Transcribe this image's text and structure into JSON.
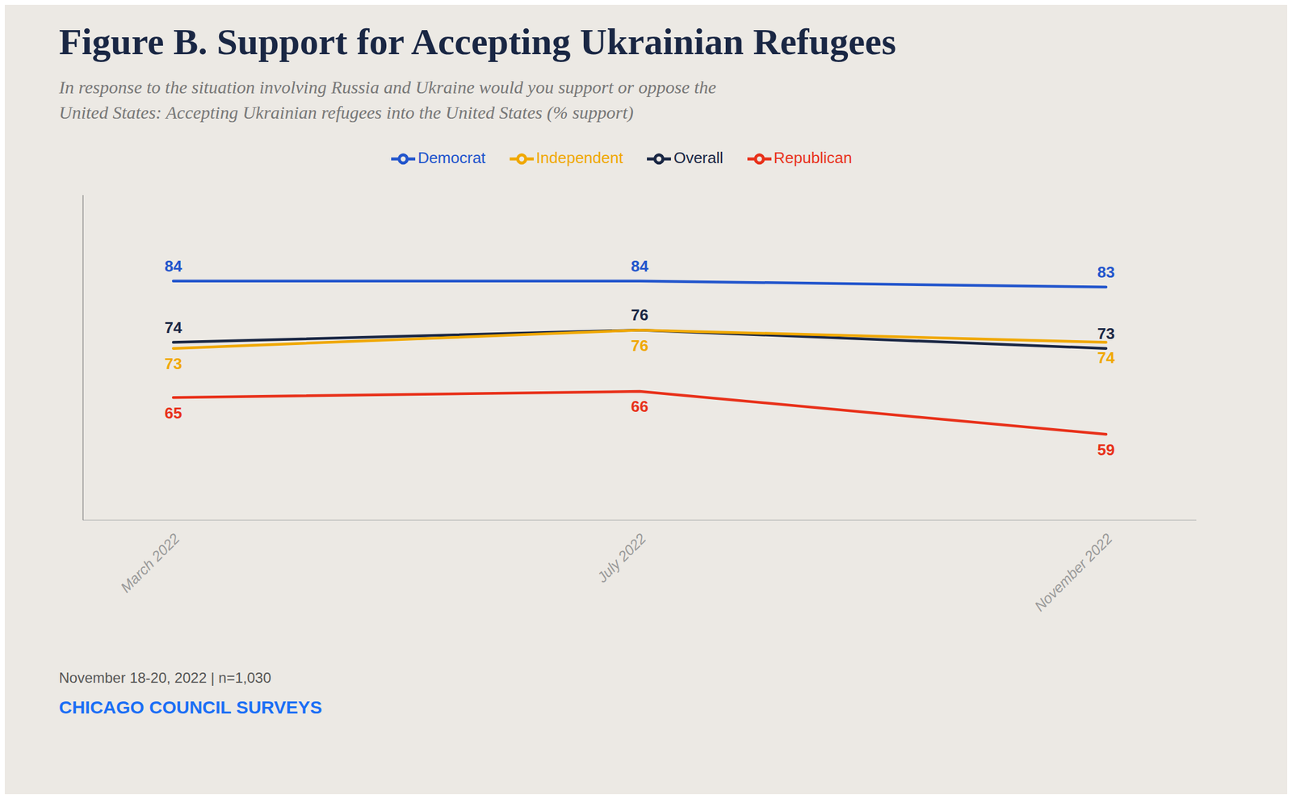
{
  "chart_data": {
    "type": "line",
    "title": "Figure B. Support for Accepting Ukrainian Refugees",
    "subtitle": "In response to the situation involving Russia and Ukraine would you support or oppose the\nUnited States: Accepting Ukrainian refugees into the United States (% support)",
    "annotations": [
      "November 18-20, 2022 | n=1,030",
      "CHICAGO COUNCIL SURVEYS"
    ],
    "categories": [
      "March 2022",
      "July 2022",
      "November 2022"
    ],
    "series": [
      {
        "name": "Overall",
        "color": "#1a2744",
        "values": [
          74,
          76,
          73
        ]
      },
      {
        "name": "Republican",
        "color": "#e8311a",
        "values": [
          65,
          66,
          59
        ]
      },
      {
        "name": "Democrat",
        "color": "#2255cc",
        "values": [
          84,
          84,
          83
        ]
      },
      {
        "name": "Independent",
        "color": "#f0a800",
        "values": [
          73,
          76,
          74
        ]
      }
    ],
    "ylim": [
      45,
      98
    ],
    "grid": false,
    "legend": "top",
    "data_labels": true,
    "tick_labels": "x"
  }
}
